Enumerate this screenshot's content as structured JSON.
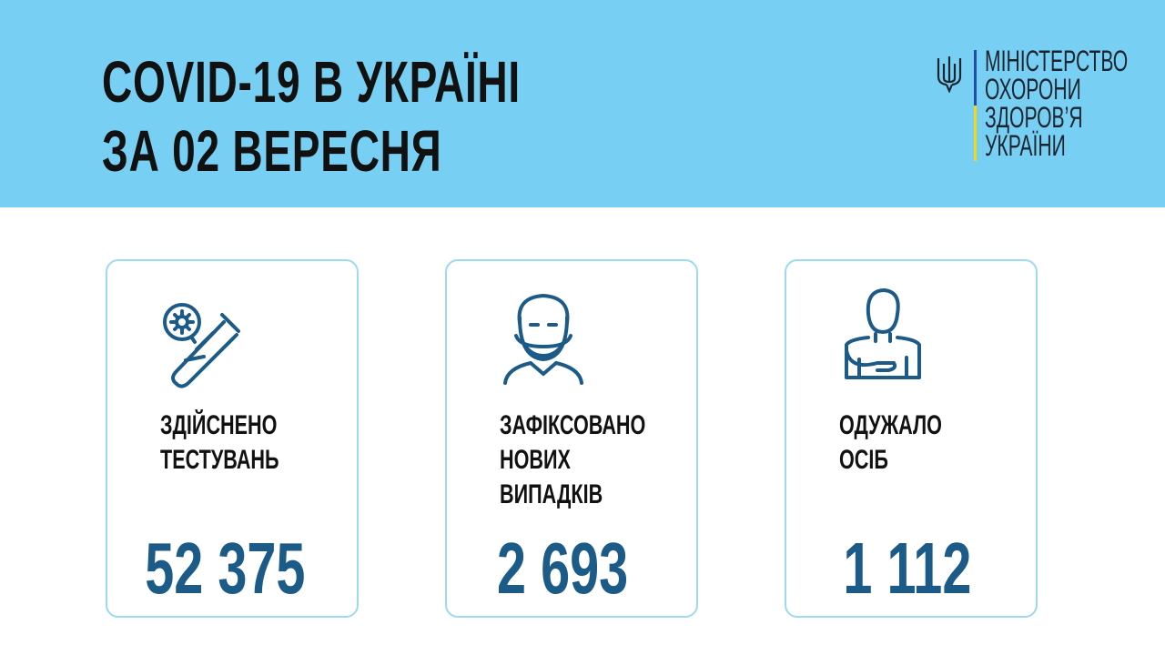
{
  "header": {
    "title_line1": "COVID-19 В УКРАЇНІ",
    "title_line2": "ЗА 02 ВЕРЕСНЯ",
    "ministry": [
      "МІНІСТЕРСТВО",
      "ОХОРОНИ",
      "ЗДОРОВ’Я",
      "УКРАЇНИ"
    ],
    "logo_icon": "trident-icon"
  },
  "colors": {
    "header_bg": "#77cff3",
    "number": "#1c5b87",
    "card_border": "#9ed9ef",
    "icon": "#1c5b87"
  },
  "cards": [
    {
      "icon": "test-tube-icon",
      "label": [
        "ЗДІЙСНЕНО",
        "ТЕСТУВАНЬ"
      ],
      "value": "52 375"
    },
    {
      "icon": "masked-person-icon",
      "label": [
        "ЗАФІКСОВАНО",
        "НОВИХ",
        "ВИПАДКІВ"
      ],
      "value": "2 693"
    },
    {
      "icon": "recovered-person-icon",
      "label": [
        "ОДУЖАЛО",
        "ОСІБ"
      ],
      "value": "1 112"
    }
  ]
}
